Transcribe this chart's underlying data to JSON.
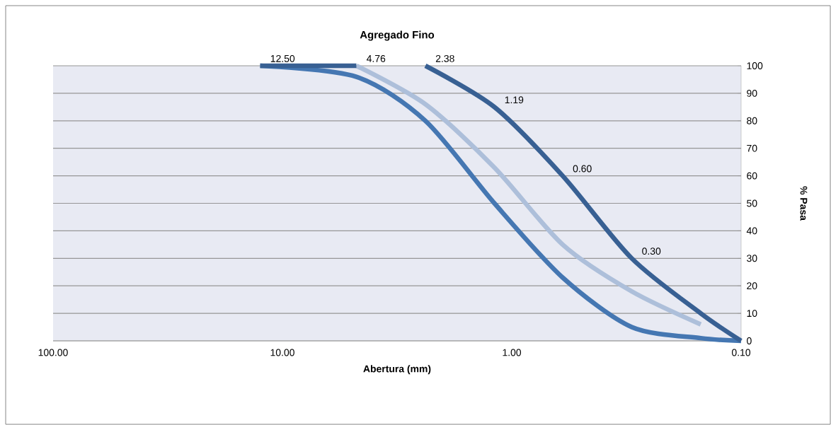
{
  "chart_data": {
    "type": "line",
    "title": "Agregado Fino",
    "xlabel": "Abertura (mm)",
    "ylabel": "% Pasa",
    "log": "x",
    "grid": "y",
    "xlim": [
      100,
      0.1
    ],
    "xticks": [
      {
        "value": 100,
        "label": "100.00"
      },
      {
        "value": 10,
        "label": "10.00"
      },
      {
        "value": 1,
        "label": "1.00"
      },
      {
        "value": 0.1,
        "label": "0.10"
      }
    ],
    "ylim": [
      0,
      100
    ],
    "yticks": [
      0,
      10,
      20,
      30,
      40,
      50,
      60,
      70,
      80,
      90,
      100
    ],
    "series": [
      {
        "color": "#adbfda",
        "x": [
          4.76,
          2.38,
          1.19,
          0.6,
          0.3,
          0.15
        ],
        "values": [
          100,
          86,
          63,
          35,
          18,
          6
        ]
      },
      {
        "color": "#4577b2",
        "x": [
          12.5,
          4.76,
          2.38,
          1.19,
          0.6,
          0.3,
          0.15,
          0.1
        ],
        "values": [
          100,
          96,
          80,
          50,
          23,
          5,
          1,
          0
        ]
      },
      {
        "color": "#386093",
        "x": [
          12.5,
          4.76
        ],
        "values": [
          100,
          100
        ]
      },
      {
        "color": "#386093",
        "x": [
          2.38,
          1.19,
          0.6,
          0.3,
          0.15,
          0.1
        ],
        "values": [
          100,
          85,
          60,
          30,
          10,
          0
        ]
      }
    ],
    "annotations": [
      {
        "text": "12.50",
        "x": 12.5,
        "y": 100
      },
      {
        "text": "4.76",
        "x": 4.76,
        "y": 100
      },
      {
        "text": "2.38",
        "x": 2.38,
        "y": 100
      },
      {
        "text": "1.19",
        "x": 1.19,
        "y": 85
      },
      {
        "text": "0.60",
        "x": 0.6,
        "y": 60
      },
      {
        "text": "0.30",
        "x": 0.3,
        "y": 30
      }
    ]
  }
}
